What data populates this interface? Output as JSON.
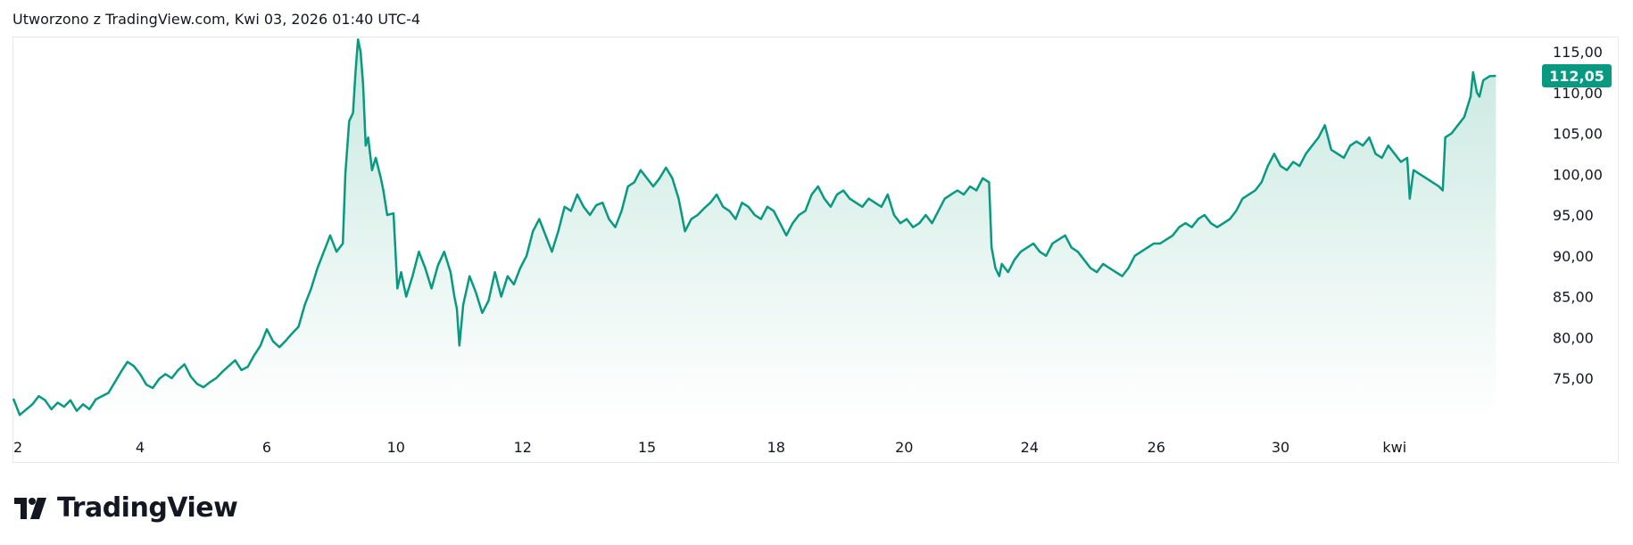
{
  "header": {
    "created_text": "Utworzono z TradingView.com, Kwi 03, 2026 01:40 UTC-4"
  },
  "brand": {
    "name": "TradingView"
  },
  "colors": {
    "line": "#089981",
    "fill_top": "#c8e8df",
    "fill_bottom": "#ffffff",
    "label_bg": "#089981"
  },
  "chart_data": {
    "type": "area",
    "last_price_label": "112,05",
    "last_price": 112.05,
    "ylim": [
      68,
      116
    ],
    "y_ticks": [
      {
        "value": 75,
        "label": "75,00"
      },
      {
        "value": 80,
        "label": "80,00"
      },
      {
        "value": 85,
        "label": "85,00"
      },
      {
        "value": 90,
        "label": "90,00"
      },
      {
        "value": 95,
        "label": "95,00"
      },
      {
        "value": 100,
        "label": "100,00"
      },
      {
        "value": 105,
        "label": "105,00"
      },
      {
        "value": 110,
        "label": "110,00"
      },
      {
        "value": 115,
        "label": "115,00"
      }
    ],
    "x_ticks": [
      {
        "pos": 0.0,
        "label": "2"
      },
      {
        "pos": 1.0,
        "label": "4"
      },
      {
        "pos": 2.0,
        "label": "6"
      },
      {
        "pos": 3.02,
        "label": "10"
      },
      {
        "pos": 4.02,
        "label": "12"
      },
      {
        "pos": 5.0,
        "label": "15"
      },
      {
        "pos": 6.02,
        "label": "18"
      },
      {
        "pos": 7.03,
        "label": "20"
      },
      {
        "pos": 8.02,
        "label": "24"
      },
      {
        "pos": 9.02,
        "label": "26"
      },
      {
        "pos": 10.0,
        "label": "30"
      },
      {
        "pos": 10.9,
        "label": "kwi"
      }
    ],
    "xlim": [
      0,
      12.0
    ],
    "series": [
      {
        "points": [
          [
            0.0,
            72.5
          ],
          [
            0.05,
            70.5
          ],
          [
            0.15,
            71.8
          ],
          [
            0.2,
            72.8
          ],
          [
            0.25,
            72.3
          ],
          [
            0.3,
            71.2
          ],
          [
            0.35,
            72.0
          ],
          [
            0.4,
            71.5
          ],
          [
            0.45,
            72.3
          ],
          [
            0.5,
            71.0
          ],
          [
            0.55,
            71.8
          ],
          [
            0.6,
            71.2
          ],
          [
            0.65,
            72.4
          ],
          [
            0.7,
            72.8
          ],
          [
            0.75,
            73.2
          ],
          [
            0.8,
            74.5
          ],
          [
            0.85,
            75.8
          ],
          [
            0.9,
            77.0
          ],
          [
            0.95,
            76.5
          ],
          [
            1.0,
            75.5
          ],
          [
            1.05,
            74.2
          ],
          [
            1.1,
            73.8
          ],
          [
            1.15,
            74.9
          ],
          [
            1.2,
            75.5
          ],
          [
            1.25,
            75.0
          ],
          [
            1.3,
            76.0
          ],
          [
            1.35,
            76.7
          ],
          [
            1.4,
            75.2
          ],
          [
            1.45,
            74.3
          ],
          [
            1.5,
            73.9
          ],
          [
            1.55,
            74.5
          ],
          [
            1.6,
            75.0
          ],
          [
            1.65,
            75.8
          ],
          [
            1.7,
            76.5
          ],
          [
            1.75,
            77.2
          ],
          [
            1.8,
            76.0
          ],
          [
            1.85,
            76.4
          ],
          [
            1.9,
            77.8
          ],
          [
            1.95,
            79.0
          ],
          [
            2.0,
            81.0
          ],
          [
            2.05,
            79.5
          ],
          [
            2.1,
            78.8
          ],
          [
            2.15,
            79.6
          ],
          [
            2.2,
            80.5
          ],
          [
            2.25,
            81.3
          ],
          [
            2.3,
            84.0
          ],
          [
            2.35,
            86.0
          ],
          [
            2.4,
            88.5
          ],
          [
            2.45,
            90.5
          ],
          [
            2.5,
            92.5
          ],
          [
            2.55,
            90.5
          ],
          [
            2.6,
            91.5
          ],
          [
            2.62,
            100.0
          ],
          [
            2.65,
            106.5
          ],
          [
            2.68,
            107.5
          ],
          [
            2.7,
            112.5
          ],
          [
            2.72,
            116.5
          ],
          [
            2.74,
            115.0
          ],
          [
            2.76,
            111.0
          ],
          [
            2.78,
            103.5
          ],
          [
            2.8,
            104.5
          ],
          [
            2.83,
            100.5
          ],
          [
            2.86,
            102.0
          ],
          [
            2.9,
            99.5
          ],
          [
            2.92,
            98.0
          ],
          [
            2.95,
            95.0
          ],
          [
            3.0,
            95.2
          ],
          [
            3.03,
            86.0
          ],
          [
            3.06,
            88.0
          ],
          [
            3.1,
            85.0
          ],
          [
            3.15,
            87.5
          ],
          [
            3.2,
            90.5
          ],
          [
            3.25,
            88.5
          ],
          [
            3.3,
            86.0
          ],
          [
            3.35,
            88.8
          ],
          [
            3.4,
            90.5
          ],
          [
            3.45,
            88.0
          ],
          [
            3.48,
            85.0
          ],
          [
            3.5,
            83.5
          ],
          [
            3.52,
            79.0
          ],
          [
            3.55,
            84.0
          ],
          [
            3.6,
            87.5
          ],
          [
            3.65,
            85.5
          ],
          [
            3.7,
            83.0
          ],
          [
            3.75,
            84.5
          ],
          [
            3.8,
            88.0
          ],
          [
            3.85,
            85.0
          ],
          [
            3.9,
            87.5
          ],
          [
            3.95,
            86.5
          ],
          [
            4.0,
            88.5
          ],
          [
            4.05,
            90.0
          ],
          [
            4.1,
            93.0
          ],
          [
            4.15,
            94.5
          ],
          [
            4.2,
            92.5
          ],
          [
            4.25,
            90.5
          ],
          [
            4.3,
            93.0
          ],
          [
            4.35,
            96.0
          ],
          [
            4.4,
            95.5
          ],
          [
            4.45,
            97.5
          ],
          [
            4.5,
            96.0
          ],
          [
            4.55,
            95.0
          ],
          [
            4.6,
            96.2
          ],
          [
            4.65,
            96.5
          ],
          [
            4.7,
            94.5
          ],
          [
            4.75,
            93.5
          ],
          [
            4.8,
            95.5
          ],
          [
            4.85,
            98.5
          ],
          [
            4.9,
            99.0
          ],
          [
            4.95,
            100.5
          ],
          [
            5.0,
            99.5
          ],
          [
            5.05,
            98.5
          ],
          [
            5.1,
            99.5
          ],
          [
            5.15,
            100.8
          ],
          [
            5.2,
            99.5
          ],
          [
            5.25,
            97.0
          ],
          [
            5.3,
            93.0
          ],
          [
            5.35,
            94.5
          ],
          [
            5.4,
            95.0
          ],
          [
            5.45,
            95.8
          ],
          [
            5.5,
            96.5
          ],
          [
            5.55,
            97.5
          ],
          [
            5.6,
            96.0
          ],
          [
            5.65,
            95.5
          ],
          [
            5.7,
            94.5
          ],
          [
            5.75,
            96.5
          ],
          [
            5.8,
            96.0
          ],
          [
            5.85,
            95.0
          ],
          [
            5.9,
            94.5
          ],
          [
            5.95,
            96.0
          ],
          [
            6.0,
            95.5
          ],
          [
            6.05,
            94.0
          ],
          [
            6.1,
            92.5
          ],
          [
            6.15,
            94.0
          ],
          [
            6.2,
            95.0
          ],
          [
            6.25,
            95.5
          ],
          [
            6.3,
            97.5
          ],
          [
            6.35,
            98.5
          ],
          [
            6.4,
            97.0
          ],
          [
            6.45,
            96.0
          ],
          [
            6.5,
            97.5
          ],
          [
            6.55,
            98.0
          ],
          [
            6.6,
            97.0
          ],
          [
            6.65,
            96.5
          ],
          [
            6.7,
            96.0
          ],
          [
            6.75,
            97.0
          ],
          [
            6.8,
            96.5
          ],
          [
            6.85,
            96.0
          ],
          [
            6.9,
            97.5
          ],
          [
            6.95,
            95.0
          ],
          [
            7.0,
            94.0
          ],
          [
            7.05,
            94.5
          ],
          [
            7.1,
            93.5
          ],
          [
            7.15,
            94.0
          ],
          [
            7.2,
            95.0
          ],
          [
            7.25,
            94.0
          ],
          [
            7.3,
            95.5
          ],
          [
            7.35,
            97.0
          ],
          [
            7.4,
            97.5
          ],
          [
            7.45,
            98.0
          ],
          [
            7.5,
            97.5
          ],
          [
            7.55,
            98.5
          ],
          [
            7.6,
            98.0
          ],
          [
            7.65,
            99.5
          ],
          [
            7.7,
            99.0
          ],
          [
            7.72,
            91.0
          ],
          [
            7.75,
            88.5
          ],
          [
            7.78,
            87.5
          ],
          [
            7.8,
            89.0
          ],
          [
            7.85,
            88.0
          ],
          [
            7.9,
            89.5
          ],
          [
            7.95,
            90.5
          ],
          [
            8.0,
            91.0
          ],
          [
            8.05,
            91.5
          ],
          [
            8.1,
            90.5
          ],
          [
            8.15,
            90.0
          ],
          [
            8.2,
            91.5
          ],
          [
            8.25,
            92.0
          ],
          [
            8.3,
            92.5
          ],
          [
            8.35,
            91.0
          ],
          [
            8.4,
            90.5
          ],
          [
            8.45,
            89.5
          ],
          [
            8.5,
            88.5
          ],
          [
            8.55,
            88.0
          ],
          [
            8.6,
            89.0
          ],
          [
            8.65,
            88.5
          ],
          [
            8.7,
            88.0
          ],
          [
            8.75,
            87.5
          ],
          [
            8.8,
            88.5
          ],
          [
            8.85,
            90.0
          ],
          [
            8.9,
            90.5
          ],
          [
            8.95,
            91.0
          ],
          [
            9.0,
            91.5
          ],
          [
            9.05,
            91.5
          ],
          [
            9.1,
            92.0
          ],
          [
            9.15,
            92.5
          ],
          [
            9.2,
            93.5
          ],
          [
            9.25,
            94.0
          ],
          [
            9.3,
            93.5
          ],
          [
            9.35,
            94.5
          ],
          [
            9.4,
            95.0
          ],
          [
            9.45,
            94.0
          ],
          [
            9.5,
            93.5
          ],
          [
            9.55,
            94.0
          ],
          [
            9.6,
            94.5
          ],
          [
            9.65,
            95.5
          ],
          [
            9.7,
            97.0
          ],
          [
            9.75,
            97.5
          ],
          [
            9.8,
            98.0
          ],
          [
            9.85,
            99.0
          ],
          [
            9.9,
            101.0
          ],
          [
            9.95,
            102.5
          ],
          [
            10.0,
            101.0
          ],
          [
            10.05,
            100.5
          ],
          [
            10.1,
            101.5
          ],
          [
            10.15,
            101.0
          ],
          [
            10.2,
            102.5
          ],
          [
            10.25,
            103.5
          ],
          [
            10.3,
            104.5
          ],
          [
            10.35,
            106.0
          ],
          [
            10.4,
            103.0
          ],
          [
            10.45,
            102.5
          ],
          [
            10.5,
            102.0
          ],
          [
            10.55,
            103.5
          ],
          [
            10.6,
            104.0
          ],
          [
            10.65,
            103.5
          ],
          [
            10.7,
            104.5
          ],
          [
            10.75,
            102.5
          ],
          [
            10.8,
            102.0
          ],
          [
            10.85,
            103.5
          ],
          [
            10.9,
            102.5
          ],
          [
            10.95,
            101.5
          ],
          [
            11.0,
            102.0
          ],
          [
            11.02,
            97.0
          ],
          [
            11.05,
            100.5
          ],
          [
            11.1,
            100.0
          ],
          [
            11.15,
            99.5
          ],
          [
            11.2,
            99.0
          ],
          [
            11.25,
            98.5
          ],
          [
            11.28,
            98.0
          ],
          [
            11.3,
            104.5
          ],
          [
            11.35,
            105.0
          ],
          [
            11.4,
            106.0
          ],
          [
            11.45,
            107.0
          ],
          [
            11.5,
            109.5
          ],
          [
            11.52,
            112.5
          ],
          [
            11.55,
            110.0
          ],
          [
            11.57,
            109.5
          ],
          [
            11.6,
            111.5
          ],
          [
            11.65,
            112.0
          ],
          [
            11.7,
            112.05
          ]
        ]
      }
    ]
  }
}
